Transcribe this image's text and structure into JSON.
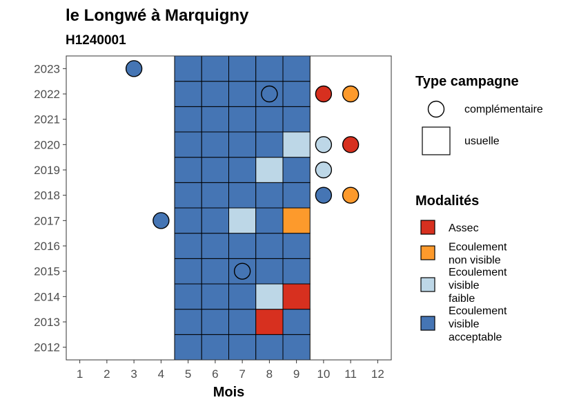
{
  "title": "le Longwé à Marquigny",
  "subtitle": "H1240001",
  "chart_data": {
    "type": "heatmap",
    "title": "le Longwé à Marquigny",
    "subtitle": "H1240001",
    "xlabel": "Mois",
    "ylabel": "",
    "x_ticks": [
      1,
      2,
      3,
      4,
      5,
      6,
      7,
      8,
      9,
      10,
      11,
      12
    ],
    "y_ticks": [
      2012,
      2013,
      2014,
      2015,
      2016,
      2017,
      2018,
      2019,
      2020,
      2021,
      2022,
      2023
    ],
    "xlim": [
      0.5,
      12.5
    ],
    "ylim": [
      2011.5,
      2023.5
    ],
    "grid": false,
    "legend_placement": "right",
    "colors": {
      "Assec": "#d7301f",
      "Ecoulement non visible": "#fd9a2c",
      "Ecoulement visible faible": "#bdd7e7",
      "Ecoulement visible acceptable": "#4575b4"
    },
    "legend_type": {
      "title": "Type campagne",
      "items": [
        {
          "label": "complémentaire",
          "shape": "circle"
        },
        {
          "label": "usuelle",
          "shape": "square"
        }
      ]
    },
    "legend_modalites": {
      "title": "Modalités",
      "items": [
        {
          "key": "Assec",
          "lines": [
            "Assec"
          ]
        },
        {
          "key": "Ecoulement non visible",
          "lines": [
            "Ecoulement",
            "non visible"
          ]
        },
        {
          "key": "Ecoulement visible faible",
          "lines": [
            "Ecoulement",
            "visible",
            "faible"
          ]
        },
        {
          "key": "Ecoulement visible acceptable",
          "lines": [
            "Ecoulement",
            "visible",
            "acceptable"
          ]
        }
      ]
    },
    "observations": [
      {
        "year": 2012,
        "month": 5,
        "campagne": "usuelle",
        "modalite": "Ecoulement visible acceptable"
      },
      {
        "year": 2012,
        "month": 6,
        "campagne": "usuelle",
        "modalite": "Ecoulement visible acceptable"
      },
      {
        "year": 2012,
        "month": 7,
        "campagne": "usuelle",
        "modalite": "Ecoulement visible acceptable"
      },
      {
        "year": 2012,
        "month": 8,
        "campagne": "usuelle",
        "modalite": "Ecoulement visible acceptable"
      },
      {
        "year": 2012,
        "month": 9,
        "campagne": "usuelle",
        "modalite": "Ecoulement visible acceptable"
      },
      {
        "year": 2013,
        "month": 5,
        "campagne": "usuelle",
        "modalite": "Ecoulement visible acceptable"
      },
      {
        "year": 2013,
        "month": 6,
        "campagne": "usuelle",
        "modalite": "Ecoulement visible acceptable"
      },
      {
        "year": 2013,
        "month": 7,
        "campagne": "usuelle",
        "modalite": "Ecoulement visible acceptable"
      },
      {
        "year": 2013,
        "month": 8,
        "campagne": "usuelle",
        "modalite": "Assec"
      },
      {
        "year": 2013,
        "month": 9,
        "campagne": "usuelle",
        "modalite": "Ecoulement visible acceptable"
      },
      {
        "year": 2014,
        "month": 5,
        "campagne": "usuelle",
        "modalite": "Ecoulement visible acceptable"
      },
      {
        "year": 2014,
        "month": 6,
        "campagne": "usuelle",
        "modalite": "Ecoulement visible acceptable"
      },
      {
        "year": 2014,
        "month": 7,
        "campagne": "usuelle",
        "modalite": "Ecoulement visible acceptable"
      },
      {
        "year": 2014,
        "month": 8,
        "campagne": "usuelle",
        "modalite": "Ecoulement visible faible"
      },
      {
        "year": 2014,
        "month": 9,
        "campagne": "usuelle",
        "modalite": "Assec"
      },
      {
        "year": 2015,
        "month": 5,
        "campagne": "usuelle",
        "modalite": "Ecoulement visible acceptable"
      },
      {
        "year": 2015,
        "month": 6,
        "campagne": "usuelle",
        "modalite": "Ecoulement visible acceptable"
      },
      {
        "year": 2015,
        "month": 7,
        "campagne": "usuelle",
        "modalite": "Ecoulement visible acceptable"
      },
      {
        "year": 2015,
        "month": 7,
        "campagne": "complémentaire",
        "modalite": "Ecoulement visible acceptable"
      },
      {
        "year": 2015,
        "month": 8,
        "campagne": "usuelle",
        "modalite": "Ecoulement visible acceptable"
      },
      {
        "year": 2015,
        "month": 9,
        "campagne": "usuelle",
        "modalite": "Ecoulement visible acceptable"
      },
      {
        "year": 2016,
        "month": 5,
        "campagne": "usuelle",
        "modalite": "Ecoulement visible acceptable"
      },
      {
        "year": 2016,
        "month": 6,
        "campagne": "usuelle",
        "modalite": "Ecoulement visible acceptable"
      },
      {
        "year": 2016,
        "month": 7,
        "campagne": "usuelle",
        "modalite": "Ecoulement visible acceptable"
      },
      {
        "year": 2016,
        "month": 8,
        "campagne": "usuelle",
        "modalite": "Ecoulement visible acceptable"
      },
      {
        "year": 2016,
        "month": 9,
        "campagne": "usuelle",
        "modalite": "Ecoulement visible acceptable"
      },
      {
        "year": 2017,
        "month": 4,
        "campagne": "complémentaire",
        "modalite": "Ecoulement visible acceptable"
      },
      {
        "year": 2017,
        "month": 5,
        "campagne": "usuelle",
        "modalite": "Ecoulement visible acceptable"
      },
      {
        "year": 2017,
        "month": 6,
        "campagne": "usuelle",
        "modalite": "Ecoulement visible acceptable"
      },
      {
        "year": 2017,
        "month": 7,
        "campagne": "usuelle",
        "modalite": "Ecoulement visible faible"
      },
      {
        "year": 2017,
        "month": 8,
        "campagne": "usuelle",
        "modalite": "Ecoulement visible acceptable"
      },
      {
        "year": 2017,
        "month": 9,
        "campagne": "usuelle",
        "modalite": "Ecoulement non visible"
      },
      {
        "year": 2018,
        "month": 5,
        "campagne": "usuelle",
        "modalite": "Ecoulement visible acceptable"
      },
      {
        "year": 2018,
        "month": 6,
        "campagne": "usuelle",
        "modalite": "Ecoulement visible acceptable"
      },
      {
        "year": 2018,
        "month": 7,
        "campagne": "usuelle",
        "modalite": "Ecoulement visible acceptable"
      },
      {
        "year": 2018,
        "month": 8,
        "campagne": "usuelle",
        "modalite": "Ecoulement visible acceptable"
      },
      {
        "year": 2018,
        "month": 9,
        "campagne": "usuelle",
        "modalite": "Ecoulement visible acceptable"
      },
      {
        "year": 2018,
        "month": 10,
        "campagne": "complémentaire",
        "modalite": "Ecoulement visible acceptable"
      },
      {
        "year": 2018,
        "month": 11,
        "campagne": "complémentaire",
        "modalite": "Ecoulement non visible"
      },
      {
        "year": 2019,
        "month": 5,
        "campagne": "usuelle",
        "modalite": "Ecoulement visible acceptable"
      },
      {
        "year": 2019,
        "month": 6,
        "campagne": "usuelle",
        "modalite": "Ecoulement visible acceptable"
      },
      {
        "year": 2019,
        "month": 7,
        "campagne": "usuelle",
        "modalite": "Ecoulement visible acceptable"
      },
      {
        "year": 2019,
        "month": 8,
        "campagne": "usuelle",
        "modalite": "Ecoulement visible faible"
      },
      {
        "year": 2019,
        "month": 9,
        "campagne": "usuelle",
        "modalite": "Ecoulement visible acceptable"
      },
      {
        "year": 2019,
        "month": 10,
        "campagne": "complémentaire",
        "modalite": "Ecoulement visible faible"
      },
      {
        "year": 2020,
        "month": 5,
        "campagne": "usuelle",
        "modalite": "Ecoulement visible acceptable"
      },
      {
        "year": 2020,
        "month": 6,
        "campagne": "usuelle",
        "modalite": "Ecoulement visible acceptable"
      },
      {
        "year": 2020,
        "month": 7,
        "campagne": "usuelle",
        "modalite": "Ecoulement visible acceptable"
      },
      {
        "year": 2020,
        "month": 8,
        "campagne": "usuelle",
        "modalite": "Ecoulement visible acceptable"
      },
      {
        "year": 2020,
        "month": 9,
        "campagne": "usuelle",
        "modalite": "Ecoulement visible faible"
      },
      {
        "year": 2020,
        "month": 10,
        "campagne": "complémentaire",
        "modalite": "Ecoulement visible faible"
      },
      {
        "year": 2020,
        "month": 11,
        "campagne": "complémentaire",
        "modalite": "Assec"
      },
      {
        "year": 2021,
        "month": 5,
        "campagne": "usuelle",
        "modalite": "Ecoulement visible acceptable"
      },
      {
        "year": 2021,
        "month": 6,
        "campagne": "usuelle",
        "modalite": "Ecoulement visible acceptable"
      },
      {
        "year": 2021,
        "month": 7,
        "campagne": "usuelle",
        "modalite": "Ecoulement visible acceptable"
      },
      {
        "year": 2021,
        "month": 8,
        "campagne": "usuelle",
        "modalite": "Ecoulement visible acceptable"
      },
      {
        "year": 2021,
        "month": 9,
        "campagne": "usuelle",
        "modalite": "Ecoulement visible acceptable"
      },
      {
        "year": 2022,
        "month": 5,
        "campagne": "usuelle",
        "modalite": "Ecoulement visible acceptable"
      },
      {
        "year": 2022,
        "month": 6,
        "campagne": "usuelle",
        "modalite": "Ecoulement visible acceptable"
      },
      {
        "year": 2022,
        "month": 7,
        "campagne": "usuelle",
        "modalite": "Ecoulement visible acceptable"
      },
      {
        "year": 2022,
        "month": 8,
        "campagne": "usuelle",
        "modalite": "Ecoulement visible acceptable"
      },
      {
        "year": 2022,
        "month": 8,
        "campagne": "complémentaire",
        "modalite": "Ecoulement visible acceptable"
      },
      {
        "year": 2022,
        "month": 9,
        "campagne": "usuelle",
        "modalite": "Ecoulement visible acceptable"
      },
      {
        "year": 2022,
        "month": 10,
        "campagne": "complémentaire",
        "modalite": "Assec"
      },
      {
        "year": 2022,
        "month": 11,
        "campagne": "complémentaire",
        "modalite": "Ecoulement non visible"
      },
      {
        "year": 2023,
        "month": 3,
        "campagne": "complémentaire",
        "modalite": "Ecoulement visible acceptable"
      },
      {
        "year": 2023,
        "month": 5,
        "campagne": "usuelle",
        "modalite": "Ecoulement visible acceptable"
      },
      {
        "year": 2023,
        "month": 6,
        "campagne": "usuelle",
        "modalite": "Ecoulement visible acceptable"
      },
      {
        "year": 2023,
        "month": 7,
        "campagne": "usuelle",
        "modalite": "Ecoulement visible acceptable"
      },
      {
        "year": 2023,
        "month": 8,
        "campagne": "usuelle",
        "modalite": "Ecoulement visible acceptable"
      },
      {
        "year": 2023,
        "month": 9,
        "campagne": "usuelle",
        "modalite": "Ecoulement visible acceptable"
      }
    ]
  }
}
